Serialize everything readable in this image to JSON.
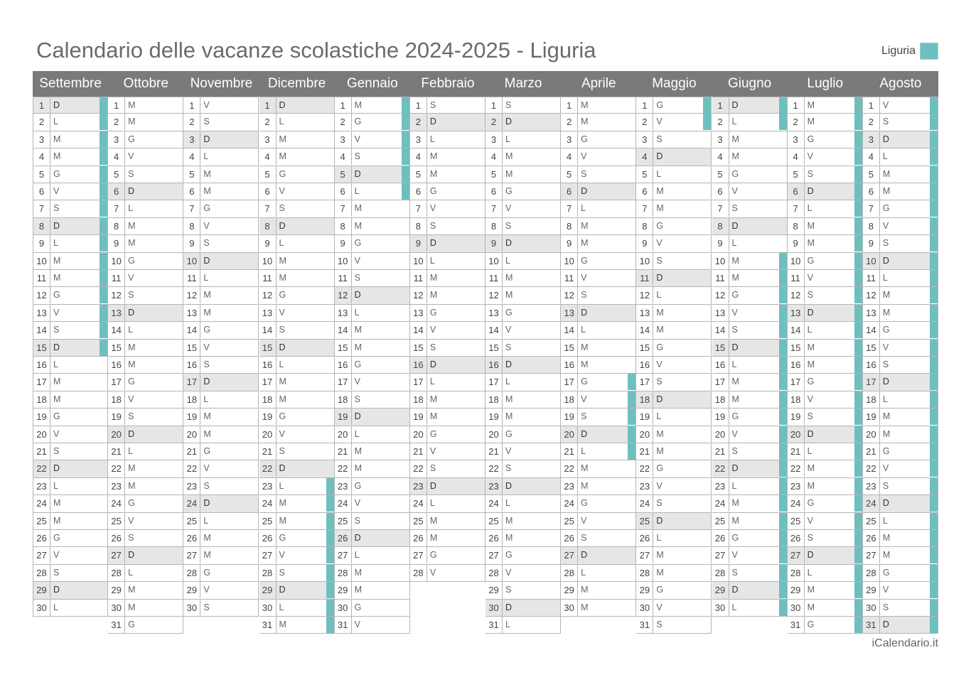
{
  "title": "Calendario delle vacanze scolastiche 2024-2025 - Liguria",
  "legend": {
    "label": "Liguria",
    "color": "#6fbfbf"
  },
  "footer": "iCalendario.it",
  "months": [
    {
      "name": "Settembre",
      "days": 30,
      "start_weekday": "D",
      "holidays": [
        1,
        2,
        3,
        4,
        5,
        6,
        7,
        8,
        9,
        10,
        11,
        12,
        13,
        14,
        15
      ]
    },
    {
      "name": "Ottobre",
      "days": 31,
      "start_weekday": "M",
      "holidays": []
    },
    {
      "name": "Novembre",
      "days": 30,
      "start_weekday": "V",
      "holidays": []
    },
    {
      "name": "Dicembre",
      "days": 31,
      "start_weekday": "D",
      "holidays": [
        23,
        24,
        25,
        26,
        27,
        28,
        29,
        30,
        31
      ]
    },
    {
      "name": "Gennaio",
      "days": 31,
      "start_weekday": "M",
      "holidays": [
        1,
        2,
        3,
        4,
        5,
        6
      ]
    },
    {
      "name": "Febbraio",
      "days": 28,
      "start_weekday": "S",
      "holidays": []
    },
    {
      "name": "Marzo",
      "days": 31,
      "start_weekday": "S",
      "holidays": []
    },
    {
      "name": "Aprile",
      "days": 30,
      "start_weekday": "M",
      "holidays": [
        17,
        18,
        19,
        20,
        21
      ]
    },
    {
      "name": "Maggio",
      "days": 31,
      "start_weekday": "G",
      "holidays": [
        1,
        2
      ]
    },
    {
      "name": "Giugno",
      "days": 30,
      "start_weekday": "D",
      "holidays": [
        1,
        2,
        10,
        11,
        12,
        13,
        14,
        15,
        16,
        17,
        18,
        19,
        20,
        21,
        22,
        23,
        24,
        25,
        26,
        27,
        28,
        29,
        30
      ]
    },
    {
      "name": "Luglio",
      "days": 31,
      "start_weekday": "M",
      "holidays": [
        1,
        2,
        3,
        4,
        5,
        6,
        7,
        8,
        9,
        10,
        11,
        12,
        13,
        14,
        15,
        16,
        17,
        18,
        19,
        20,
        21,
        22,
        23,
        24,
        25,
        26,
        27,
        28,
        29,
        30,
        31
      ]
    },
    {
      "name": "Agosto",
      "days": 31,
      "start_weekday": "V",
      "holidays": [
        1,
        2,
        3,
        4,
        5,
        6,
        7,
        8,
        9,
        10,
        11,
        12,
        13,
        14,
        15,
        16,
        17,
        18,
        19,
        20,
        21,
        22,
        23,
        24,
        25,
        26,
        27,
        28,
        29,
        30,
        31
      ]
    }
  ],
  "weekday_cycle": [
    "L",
    "M",
    "M",
    "G",
    "V",
    "S",
    "D"
  ],
  "start_index": {
    "Settembre": 6,
    "Ottobre": 1,
    "Novembre": 4,
    "Dicembre": 6,
    "Gennaio": 2,
    "Febbraio": 5,
    "Marzo": 5,
    "Aprile": 1,
    "Maggio": 3,
    "Giugno": 6,
    "Luglio": 1,
    "Agosto": 4
  },
  "shaded_days": {
    "Maggio": [
      1
    ],
    "Giugno": [
      2
    ],
    "Aprile": [
      21
    ],
    "Marzo": [],
    "Agosto": [
      15
    ],
    "Dicembre": [
      25,
      26
    ],
    "Gennaio": [
      1,
      6
    ],
    "Novembre": [
      1
    ]
  }
}
